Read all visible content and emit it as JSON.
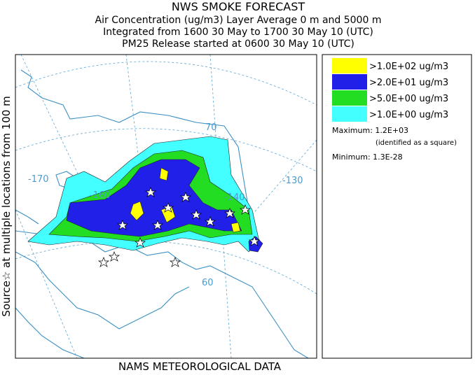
{
  "header": {
    "title": "NWS SMOKE FORECAST",
    "lines": [
      "Air Concentration (ug/m3) Layer Average    0 m and  5000 m",
      "Integrated from 1600 30 May to 1700 30 May 10 (UTC)",
      "PM25 Release started at 0600 30 May 10 (UTC)"
    ]
  },
  "side_label": "Source☆ at multiple locations from 100 m",
  "footer": "NAMS METEOROLOGICAL DATA",
  "map": {
    "labels": [
      "-170",
      "-160",
      "-140",
      "-130",
      "70",
      "60"
    ]
  },
  "legend": {
    "items": [
      {
        "label": ">1.0E+02 ug/m3",
        "color": "#ffff00"
      },
      {
        "label": ">2.0E+01 ug/m3",
        "color": "#2020e8"
      },
      {
        "label": ">5.0E+00 ug/m3",
        "color": "#22dd22"
      },
      {
        "label": ">1.0E+00 ug/m3",
        "color": "#44ffff"
      }
    ],
    "maximum": "Maximum: 1.2E+03",
    "max_note": "(identified as a square)",
    "minimum": "Minimum: 1.3E-28"
  }
}
